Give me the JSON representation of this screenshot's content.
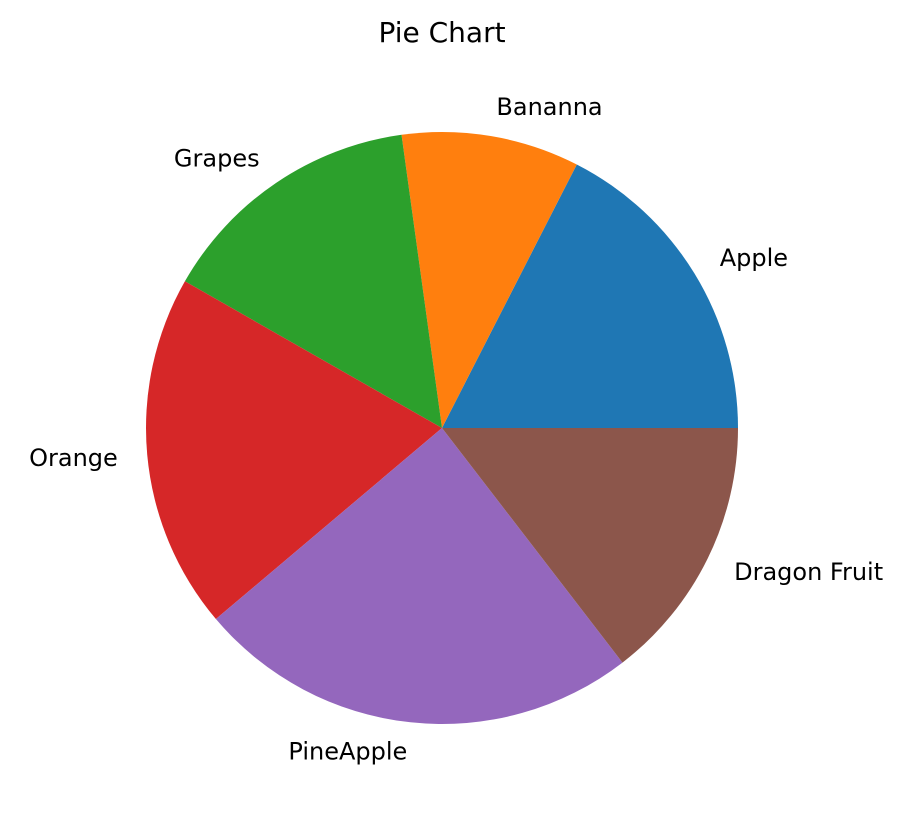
{
  "chart_data": {
    "type": "pie",
    "title": "Pie Chart",
    "start_angle_deg": 0,
    "direction": "counterclockwise",
    "slices": [
      {
        "label": "Apple",
        "value": 18,
        "color": "#1f77b4"
      },
      {
        "label": "Bananna",
        "value": 10,
        "color": "#ff7f0e"
      },
      {
        "label": "Grapes",
        "value": 15,
        "color": "#2ca02c"
      },
      {
        "label": "Orange",
        "value": 20,
        "color": "#d62728"
      },
      {
        "label": "PineApple",
        "value": 25,
        "color": "#9467bd"
      },
      {
        "label": "Dragon Fruit",
        "value": 15,
        "color": "#8c564b"
      }
    ]
  }
}
